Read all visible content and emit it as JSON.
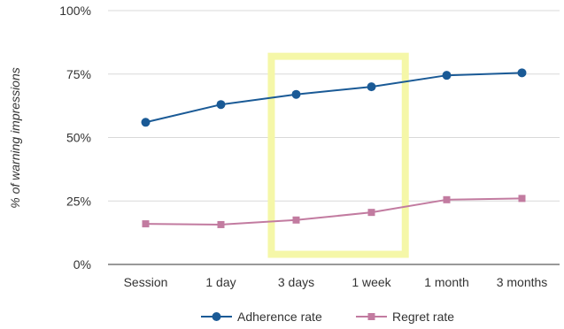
{
  "chart_data": {
    "type": "line",
    "categories": [
      "Session",
      "1 day",
      "3 days",
      "1 week",
      "1 month",
      "3 months"
    ],
    "series": [
      {
        "name": "Adherence rate",
        "values": [
          56,
          63,
          67,
          70,
          74.5,
          75.5
        ],
        "color": "#1a5a96",
        "marker": "circle"
      },
      {
        "name": "Regret rate",
        "values": [
          16,
          15.7,
          17.5,
          20.5,
          25.5,
          26
        ],
        "color": "#c27ba0",
        "marker": "square"
      }
    ],
    "xlabel": "",
    "ylabel": "% of warning impressions",
    "ylim": [
      0,
      100
    ],
    "yticks": [
      {
        "value": 0,
        "label": "0%"
      },
      {
        "value": 25,
        "label": "25%"
      },
      {
        "value": 50,
        "label": "50%"
      },
      {
        "value": 75,
        "label": "75%"
      },
      {
        "value": 100,
        "label": "100%"
      }
    ],
    "grid": true,
    "legend_position": "bottom",
    "highlight": {
      "categories": [
        "3 days",
        "1 week"
      ],
      "color": "#f5f7a8"
    }
  }
}
